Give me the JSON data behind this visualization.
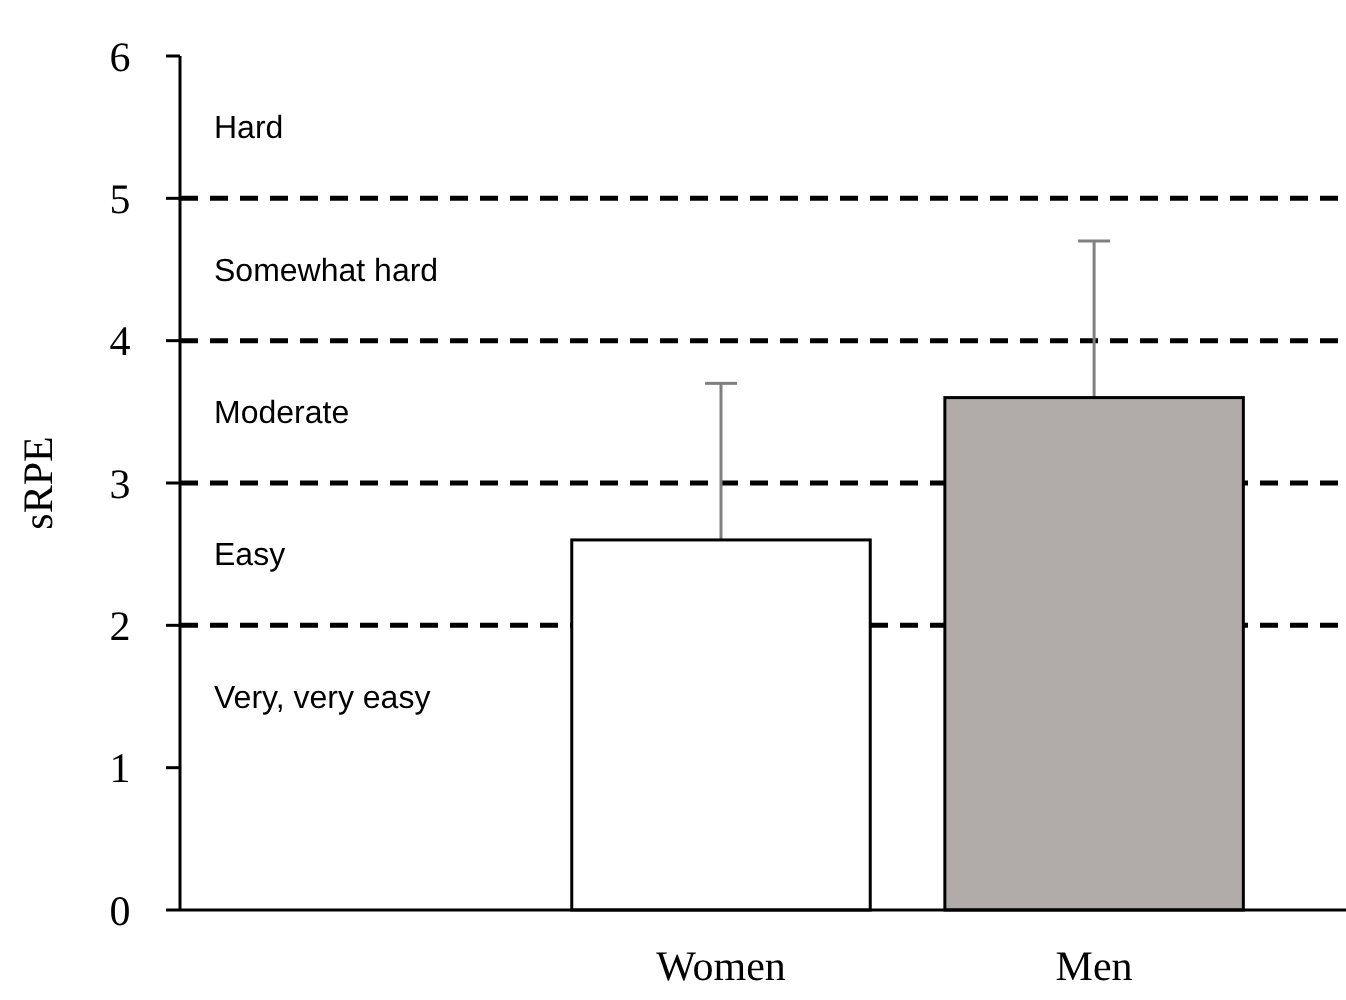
{
  "chart_data": {
    "type": "bar",
    "ylabel": "sRPE",
    "categories": [
      null,
      "Women",
      "Men"
    ],
    "values": [
      null,
      2.6,
      3.6
    ],
    "colors": [
      null,
      "#ffffff",
      "#b1abaa"
    ],
    "errors": [
      null,
      1.1,
      1.1
    ],
    "ylim": [
      0,
      6
    ],
    "yticks": [
      0,
      1,
      2,
      3,
      4,
      5,
      6
    ],
    "grid": false,
    "ref_lines": [
      {
        "axis": "y",
        "value": 2,
        "line_style": "dashed",
        "color": "#000000"
      },
      {
        "axis": "y",
        "value": 3,
        "line_style": "dashed",
        "color": "#000000"
      },
      {
        "axis": "y",
        "value": 4,
        "line_style": "dashed",
        "color": "#000000"
      },
      {
        "axis": "y",
        "value": 5,
        "line_style": "dashed",
        "color": "#000000"
      }
    ],
    "annotations": [
      "Hard",
      "Somewhat hard",
      "Moderate",
      "Easy",
      "Very, very easy"
    ]
  }
}
